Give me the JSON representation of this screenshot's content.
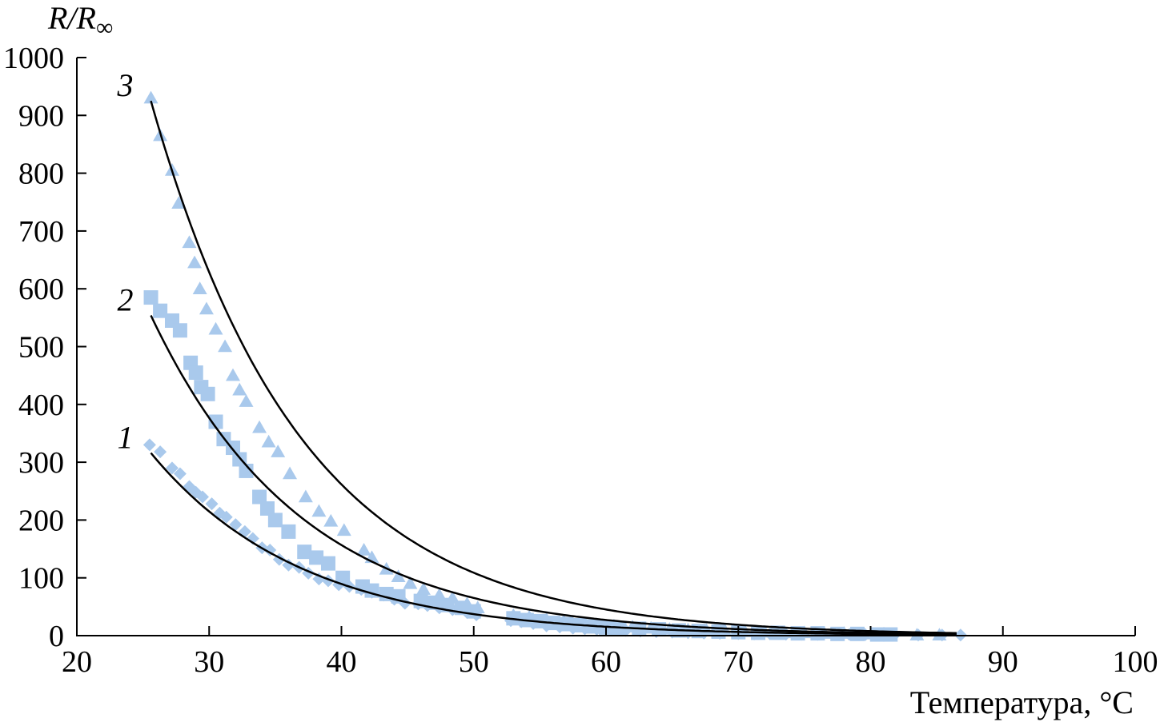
{
  "chart_data": {
    "type": "scatter",
    "ylabel": {
      "main": "R/R",
      "sub": "∞"
    },
    "xlabel": "Температура, °C",
    "xlim": [
      20,
      100
    ],
    "ylim": [
      0,
      1000
    ],
    "x_ticks": [
      "20",
      "30",
      "40",
      "50",
      "60",
      "70",
      "80",
      "90",
      "100"
    ],
    "y_ticks": [
      "0",
      "100",
      "200",
      "300",
      "400",
      "500",
      "600",
      "700",
      "800",
      "900",
      "1000"
    ],
    "grid": false,
    "marker_color": "#a9c9ec",
    "line_color": "#000000",
    "series": [
      {
        "label": "1",
        "marker": "diamond",
        "points": [
          [
            25.5,
            330
          ],
          [
            26.3,
            318
          ],
          [
            27.2,
            290
          ],
          [
            27.8,
            280
          ],
          [
            28.5,
            258
          ],
          [
            29,
            248
          ],
          [
            29.5,
            240
          ],
          [
            30.2,
            228
          ],
          [
            30.8,
            212
          ],
          [
            31.3,
            205
          ],
          [
            32,
            192
          ],
          [
            32.7,
            180
          ],
          [
            33.3,
            168
          ],
          [
            34,
            152
          ],
          [
            34.6,
            148
          ],
          [
            35.3,
            132
          ],
          [
            36,
            122
          ],
          [
            36.8,
            118
          ],
          [
            37.5,
            108
          ],
          [
            38.3,
            98
          ],
          [
            39,
            95
          ],
          [
            39.8,
            88
          ],
          [
            40.6,
            85
          ],
          [
            41.5,
            80
          ],
          [
            42.3,
            75
          ],
          [
            43.2,
            70
          ],
          [
            44,
            63
          ],
          [
            44.8,
            56
          ],
          [
            45.8,
            55
          ],
          [
            46.5,
            52
          ],
          [
            47.4,
            48
          ],
          [
            48.4,
            45
          ],
          [
            49.5,
            40
          ],
          [
            50.2,
            36
          ],
          [
            52.8,
            26
          ],
          [
            53.6,
            24
          ],
          [
            54.5,
            21
          ],
          [
            55.5,
            17
          ],
          [
            56.5,
            15
          ],
          [
            57.5,
            13
          ],
          [
            58.4,
            12
          ],
          [
            59.3,
            11
          ],
          [
            60.4,
            10
          ],
          [
            61.5,
            9
          ],
          [
            62.6,
            8
          ],
          [
            63.8,
            7
          ],
          [
            65,
            6
          ],
          [
            66.2,
            5
          ],
          [
            67.4,
            4.5
          ],
          [
            68.6,
            4
          ],
          [
            70,
            3.5
          ],
          [
            71.2,
            3
          ],
          [
            72.4,
            3
          ],
          [
            73.6,
            2.5
          ],
          [
            74.8,
            2.5
          ],
          [
            76,
            2
          ],
          [
            77.2,
            2
          ],
          [
            78.4,
            2
          ],
          [
            79.6,
            1.5
          ],
          [
            80.8,
            1.5
          ],
          [
            81.8,
            1
          ],
          [
            83.6,
            1
          ],
          [
            85.4,
            1
          ],
          [
            86.8,
            1
          ]
        ],
        "fit": {
          "a": 316,
          "b": 0.0877,
          "x_from": 25.6,
          "x_to": 86.5
        }
      },
      {
        "label": "2",
        "marker": "square",
        "points": [
          [
            25.6,
            585
          ],
          [
            26.3,
            562
          ],
          [
            27.2,
            545
          ],
          [
            27.8,
            528
          ],
          [
            28.6,
            472
          ],
          [
            29,
            455
          ],
          [
            29.4,
            430
          ],
          [
            29.9,
            418
          ],
          [
            30.5,
            370
          ],
          [
            31.1,
            340
          ],
          [
            31.8,
            325
          ],
          [
            32.3,
            305
          ],
          [
            32.8,
            285
          ],
          [
            33.8,
            240
          ],
          [
            34.4,
            220
          ],
          [
            35,
            200
          ],
          [
            36,
            180
          ],
          [
            37.2,
            145
          ],
          [
            38.1,
            135
          ],
          [
            39,
            125
          ],
          [
            40.1,
            100
          ],
          [
            41.6,
            85
          ],
          [
            42.3,
            78
          ],
          [
            43.4,
            72
          ],
          [
            44.3,
            68
          ],
          [
            46,
            60
          ],
          [
            47,
            57
          ],
          [
            48,
            53
          ],
          [
            49.1,
            48
          ],
          [
            50,
            42
          ],
          [
            53,
            30
          ],
          [
            54,
            27
          ],
          [
            55,
            25
          ],
          [
            56,
            22
          ],
          [
            57,
            20
          ],
          [
            58,
            18
          ],
          [
            59,
            16
          ],
          [
            60,
            14
          ],
          [
            61,
            13
          ],
          [
            62.5,
            12
          ],
          [
            64,
            11
          ],
          [
            65.5,
            9
          ],
          [
            67,
            8
          ],
          [
            68.5,
            7
          ],
          [
            70,
            6
          ],
          [
            71.5,
            5
          ],
          [
            73,
            5
          ],
          [
            74.5,
            4
          ],
          [
            76,
            4
          ],
          [
            77.5,
            3
          ],
          [
            79,
            3
          ],
          [
            80.5,
            2
          ],
          [
            81.5,
            2
          ]
        ],
        "fit": {
          "a": 554,
          "b": 0.0877,
          "x_from": 25.6,
          "x_to": 86.5
        }
      },
      {
        "label": "3",
        "marker": "triangle",
        "points": [
          [
            25.6,
            930
          ],
          [
            26.3,
            865
          ],
          [
            27.2,
            805
          ],
          [
            27.7,
            748
          ],
          [
            28.5,
            680
          ],
          [
            28.9,
            645
          ],
          [
            29.3,
            600
          ],
          [
            29.8,
            565
          ],
          [
            30.5,
            530
          ],
          [
            31.2,
            500
          ],
          [
            31.8,
            450
          ],
          [
            32.3,
            425
          ],
          [
            32.8,
            405
          ],
          [
            33.8,
            360
          ],
          [
            34.5,
            335
          ],
          [
            35.2,
            318
          ],
          [
            36.1,
            280
          ],
          [
            37.3,
            240
          ],
          [
            38.3,
            215
          ],
          [
            39.2,
            198
          ],
          [
            40.2,
            182
          ],
          [
            41.7,
            148
          ],
          [
            42.3,
            135
          ],
          [
            43.4,
            115
          ],
          [
            44.3,
            102
          ],
          [
            45.2,
            90
          ],
          [
            46.2,
            80
          ],
          [
            47.4,
            70
          ],
          [
            48.4,
            65
          ],
          [
            49.5,
            55
          ],
          [
            50.3,
            48
          ],
          [
            53,
            35
          ],
          [
            54.2,
            32
          ],
          [
            55.5,
            28
          ],
          [
            56.8,
            25
          ],
          [
            58,
            22
          ],
          [
            59.3,
            19
          ],
          [
            60.6,
            17
          ],
          [
            62,
            15
          ],
          [
            63.4,
            13
          ],
          [
            64.8,
            11
          ],
          [
            66.2,
            10
          ],
          [
            67.6,
            9
          ],
          [
            69,
            8
          ],
          [
            70.5,
            7
          ],
          [
            72,
            6
          ],
          [
            73.5,
            5
          ],
          [
            75,
            5
          ],
          [
            76.5,
            4
          ],
          [
            78,
            4
          ],
          [
            79.5,
            3
          ],
          [
            81,
            3
          ],
          [
            83.5,
            1
          ],
          [
            85.2,
            1
          ]
        ],
        "fit": {
          "a": 925,
          "b": 0.0877,
          "x_from": 25.6,
          "x_to": 86.5
        }
      }
    ]
  }
}
